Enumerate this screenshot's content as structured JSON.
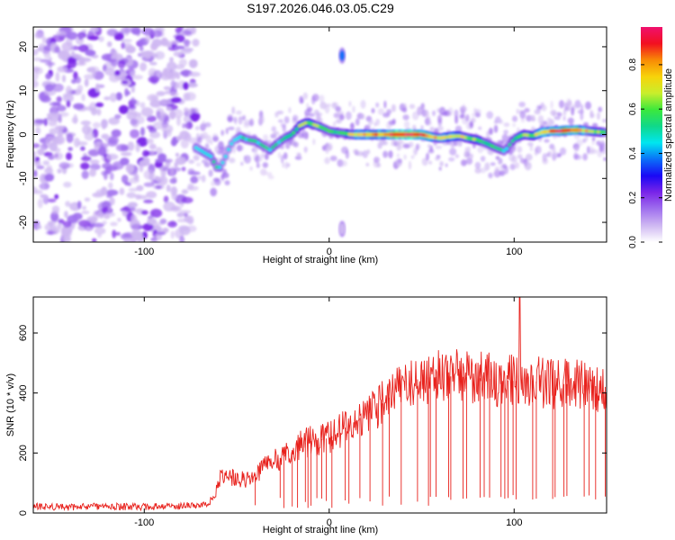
{
  "title": "S197.2026.046.03.05.C29",
  "colors": {
    "snr_line": "#e8211c",
    "colormap": [
      "#ffffff",
      "#cfb8f2",
      "#a070ee",
      "#7a25e8",
      "#1a08f5",
      "#0a6ff8",
      "#00e6f0",
      "#10d88a",
      "#3ce83c",
      "#c9ee2c",
      "#f7d30a",
      "#f88a05",
      "#f21020",
      "#f0106e"
    ]
  },
  "chart_data": [
    {
      "type": "heatmap",
      "xlabel": "Height of straight line (km)",
      "ylabel": "Frequency (Hz)",
      "xlim": [
        -160,
        150
      ],
      "ylim": [
        -24.5,
        24.5
      ],
      "xticks": [
        -100,
        0,
        100
      ],
      "yticks": [
        -20,
        -10,
        0,
        10,
        20
      ],
      "colorbar": {
        "label": "Normalized spectral amplitude",
        "range": [
          0,
          0.97
        ],
        "ticks": [
          "0.0",
          "0.2",
          "0.4",
          "0.6",
          "0.8"
        ]
      },
      "noise_region_x": [
        -160,
        -72
      ],
      "ridge": {
        "x": [
          -72,
          -68,
          -64,
          -60,
          -57,
          -54,
          -52,
          -48,
          -44,
          -40,
          -36,
          -32,
          -28,
          -24,
          -20,
          -16,
          -12,
          -8,
          -4,
          0,
          4,
          8,
          12,
          20,
          30,
          40,
          50,
          55,
          60,
          65,
          70,
          75,
          80,
          85,
          90,
          95,
          100,
          105,
          110,
          115,
          120,
          125,
          130,
          135,
          140,
          145,
          150
        ],
        "frequency": [
          -3,
          -4,
          -5,
          -8,
          -6,
          -3,
          -1.5,
          -0.5,
          -1.2,
          -1.5,
          -2.5,
          -3.5,
          -2,
          -0.8,
          0,
          2,
          2.8,
          2.2,
          1.6,
          0.8,
          0.5,
          0.3,
          0,
          0,
          0,
          0,
          0,
          -0.5,
          -0.8,
          -0.5,
          -0.3,
          -0.8,
          -1.2,
          -2,
          -3,
          -3.8,
          -1,
          0,
          -0.3,
          0.5,
          0.8,
          0.8,
          1.0,
          1.0,
          0.8,
          0.6,
          0.5
        ],
        "amplitude": [
          0.25,
          0.3,
          0.3,
          0.3,
          0.25,
          0.25,
          0.25,
          0.3,
          0.35,
          0.35,
          0.3,
          0.3,
          0.35,
          0.35,
          0.4,
          0.5,
          0.55,
          0.5,
          0.45,
          0.4,
          0.4,
          0.45,
          0.6,
          0.7,
          0.75,
          0.97,
          0.85,
          0.7,
          0.6,
          0.6,
          0.6,
          0.5,
          0.45,
          0.4,
          0.35,
          0.3,
          0.4,
          0.5,
          0.55,
          0.65,
          0.75,
          0.8,
          0.85,
          0.75,
          0.6,
          0.5,
          0.45
        ]
      },
      "isolated_blobs": [
        {
          "x": 7,
          "frequency": 18,
          "amplitude": 0.35
        },
        {
          "x": 7,
          "frequency": -21.5,
          "amplitude": 0.1
        }
      ]
    },
    {
      "type": "line",
      "xlabel": "Height of straight line (km)",
      "ylabel": "SNR (10 * v/v)",
      "xlim": [
        -160,
        150
      ],
      "ylim": [
        0,
        720
      ],
      "xticks": [
        -100,
        0,
        100
      ],
      "yticks": [
        0,
        200,
        400,
        600
      ],
      "series": [
        {
          "name": "SNR",
          "x": [
            -160,
            -140,
            -120,
            -100,
            -80,
            -66,
            -62,
            -60,
            -55,
            -50,
            -45,
            -40,
            -35,
            -30,
            -25,
            -20,
            -15,
            -10,
            -5,
            0,
            5,
            10,
            15,
            20,
            25,
            30,
            35,
            40,
            45,
            50,
            60,
            70,
            80,
            90,
            100,
            110,
            120,
            130,
            140,
            150
          ],
          "snr": [
            22,
            20,
            22,
            21,
            23,
            25,
            60,
            110,
            120,
            115,
            110,
            130,
            160,
            170,
            190,
            210,
            230,
            240,
            245,
            250,
            270,
            290,
            310,
            330,
            350,
            370,
            400,
            430,
            440,
            450,
            455,
            455,
            450,
            445,
            440,
            440,
            430,
            430,
            425,
            420
          ]
        }
      ],
      "peak": {
        "x": 103,
        "snr": 720
      }
    }
  ]
}
